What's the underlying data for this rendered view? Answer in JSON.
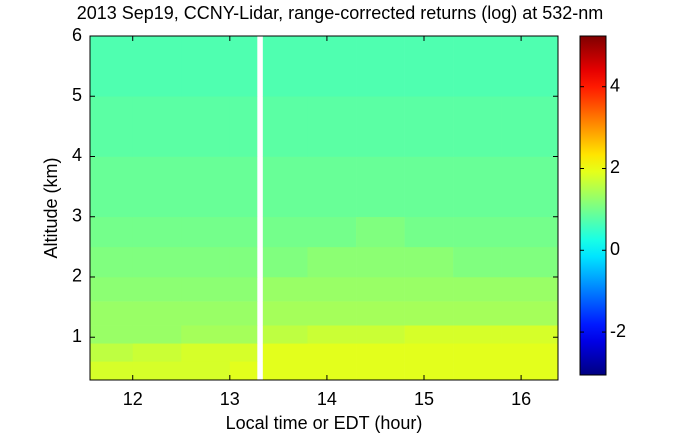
{
  "chart_data": {
    "type": "heatmap",
    "title": "2013 Sep19, CCNY-Lidar, range-corrected returns (log) at 532-nm",
    "x_label": "Local time or EDT (hour)",
    "y_label": "Altitude (km)",
    "x_edges": [
      11.56,
      12.0,
      12.5,
      13.0,
      13.28,
      13.34,
      13.8,
      14.3,
      14.8,
      15.3,
      15.8,
      16.38
    ],
    "y_edges": [
      0.29,
      0.6,
      0.9,
      1.2,
      1.6,
      2.0,
      2.5,
      3.0,
      4.0,
      5.0,
      6.0
    ],
    "z": [
      [
        1.8,
        1.8,
        1.8,
        1.9,
        null,
        1.9,
        1.9,
        1.9,
        1.9,
        1.9,
        1.9
      ],
      [
        1.6,
        1.7,
        1.8,
        1.8,
        null,
        1.9,
        1.9,
        1.9,
        1.9,
        1.9,
        1.9
      ],
      [
        1.3,
        1.3,
        1.4,
        1.4,
        null,
        1.6,
        1.7,
        1.7,
        1.8,
        1.8,
        1.8
      ],
      [
        1.3,
        1.3,
        1.3,
        1.3,
        null,
        1.4,
        1.4,
        1.4,
        1.4,
        1.4,
        1.4
      ],
      [
        1.2,
        1.2,
        1.2,
        1.2,
        null,
        1.3,
        1.3,
        1.3,
        1.3,
        1.3,
        1.3
      ],
      [
        1.1,
        1.1,
        1.1,
        1.1,
        null,
        1.1,
        1.2,
        1.2,
        1.2,
        1.1,
        1.1
      ],
      [
        1.0,
        1.0,
        1.0,
        1.0,
        null,
        1.0,
        1.0,
        1.1,
        1.0,
        1.0,
        1.0
      ],
      [
        0.9,
        0.9,
        0.9,
        0.9,
        null,
        0.9,
        0.9,
        0.9,
        0.9,
        0.9,
        0.9
      ],
      [
        0.8,
        0.8,
        0.8,
        0.8,
        null,
        0.8,
        0.8,
        0.8,
        0.8,
        0.8,
        0.8
      ],
      [
        0.7,
        0.7,
        0.7,
        0.7,
        null,
        0.7,
        0.7,
        0.7,
        0.7,
        0.7,
        0.7
      ]
    ],
    "xlim": [
      11.56,
      16.38
    ],
    "xticks": [
      12,
      13,
      14,
      15,
      16
    ],
    "ylim": [
      0.29,
      6
    ],
    "yticks": [
      1,
      2,
      3,
      4,
      5,
      6
    ],
    "colormap": "jet",
    "clim": [
      -3.05,
      5.24
    ],
    "cticks": [
      -2,
      0,
      2,
      4
    ]
  }
}
